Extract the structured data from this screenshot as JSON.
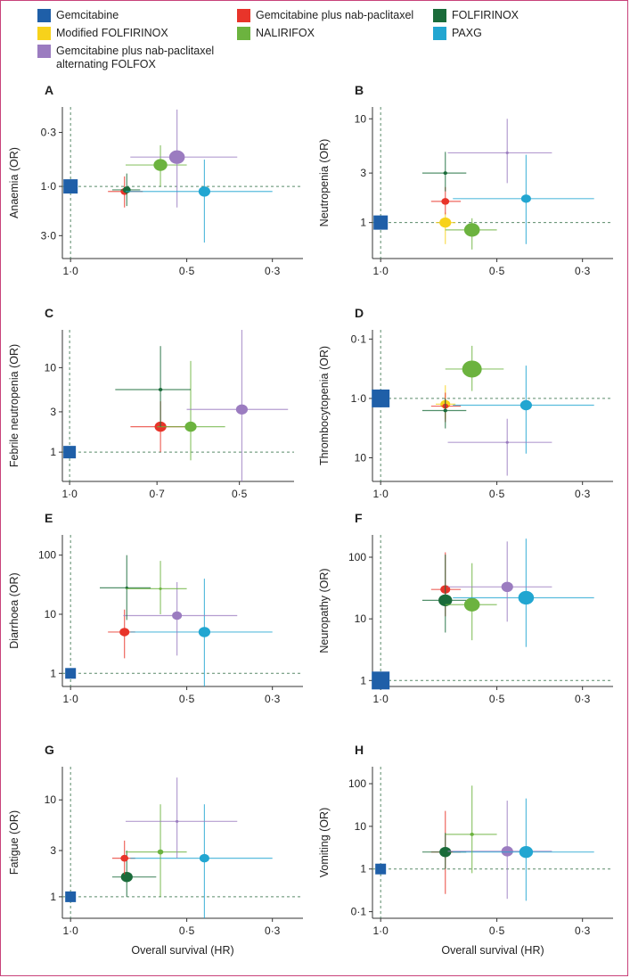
{
  "legend": [
    {
      "name": "Gemcitabine",
      "color": "#1f5fa8"
    },
    {
      "name": "Gemcitabine plus nab-paclitaxel",
      "color": "#e8342a"
    },
    {
      "name": "FOLFIRINOX",
      "color": "#1a6b3a"
    },
    {
      "name": "Modified FOLFIRINOX",
      "color": "#f7d21b"
    },
    {
      "name": "NALIRIFOX",
      "color": "#6cb33f"
    },
    {
      "name": "PAXG",
      "color": "#22a6d1"
    },
    {
      "name": "Gemcitabine plus nab-paclitaxel alternating FOLFOX",
      "name_lines": [
        "Gemcitabine plus nab-paclitaxel",
        "alternating FOLFOX"
      ],
      "color": "#9b7cc0"
    }
  ],
  "xlabel": "Overall survival (HR)",
  "chart_data": [
    {
      "panel": "A",
      "type": "scatter",
      "ylabel": "Anaemia (OR)",
      "ylog": true,
      "y_inverted": true,
      "xlim": [
        1.05,
        0.25
      ],
      "ylim": [
        0.17,
        5.0
      ],
      "xticks": [
        {
          "v": 1.0,
          "label": "1·0"
        },
        {
          "v": 0.5,
          "label": "0·5"
        },
        {
          "v": 0.3,
          "label": "0·3"
        }
      ],
      "yticks": [
        {
          "v": 0.3,
          "label": "0·3"
        },
        {
          "v": 1.0,
          "label": "1·0"
        },
        {
          "v": 3.0,
          "label": "3·0"
        }
      ],
      "ref": {
        "x": 1.0,
        "y": 1.0
      },
      "points": [
        {
          "series": "Gemcitabine",
          "x": 1.0,
          "y": 1.0,
          "size": 8,
          "shape": "square"
        },
        {
          "series": "Gemcitabine plus nab-paclitaxel",
          "x": 0.725,
          "y": 1.12,
          "xerr": [
            0.8,
            0.65
          ],
          "yerr": [
            0.8,
            1.6
          ],
          "size": 4
        },
        {
          "series": "FOLFIRINOX",
          "x": 0.715,
          "y": 1.08,
          "xerr": [
            0.78,
            0.66
          ],
          "yerr": [
            0.75,
            1.55
          ],
          "size": 4
        },
        {
          "series": "NALIRIFOX",
          "x": 0.585,
          "y": 0.62,
          "xerr": [
            0.72,
            0.5
          ],
          "yerr": [
            0.4,
            1.0
          ],
          "size": 7
        },
        {
          "series": "Gemcitabine plus nab-paclitaxel alternating FOLFOX",
          "x": 0.53,
          "y": 0.52,
          "xerr": [
            0.7,
            0.37
          ],
          "yerr": [
            0.18,
            1.6
          ],
          "size": 8
        },
        {
          "series": "PAXG",
          "x": 0.45,
          "y": 1.12,
          "xerr": [
            0.72,
            0.3
          ],
          "yerr": [
            0.55,
            3.5
          ],
          "size": 6
        }
      ]
    },
    {
      "panel": "B",
      "type": "scatter",
      "ylabel": "Neutropenia (OR)",
      "ylog": true,
      "y_inverted": false,
      "xlim": [
        1.05,
        0.25
      ],
      "ylim": [
        0.45,
        13.0
      ],
      "xticks": [
        {
          "v": 1.0,
          "label": "1·0"
        },
        {
          "v": 0.5,
          "label": "0·5"
        },
        {
          "v": 0.3,
          "label": "0·3"
        }
      ],
      "yticks": [
        {
          "v": 1,
          "label": "1"
        },
        {
          "v": 3,
          "label": "3"
        },
        {
          "v": 10,
          "label": "10"
        }
      ],
      "ref": {
        "x": 1.0,
        "y": 1.0
      },
      "points": [
        {
          "series": "Gemcitabine",
          "x": 1.0,
          "y": 1.0,
          "size": 8,
          "shape": "square"
        },
        {
          "series": "Modified FOLFIRINOX",
          "x": 0.68,
          "y": 1.0,
          "xerr": [
            0.72,
            0.64
          ],
          "yerr": [
            0.62,
            1.25
          ],
          "size": 6
        },
        {
          "series": "NALIRIFOX",
          "x": 0.58,
          "y": 0.85,
          "xerr": [
            0.68,
            0.5
          ],
          "yerr": [
            0.55,
            1.1
          ],
          "size": 8
        },
        {
          "series": "Gemcitabine plus nab-paclitaxel",
          "x": 0.68,
          "y": 1.6,
          "xerr": [
            0.74,
            0.62
          ],
          "yerr": [
            1.2,
            2.2
          ],
          "size": 4
        },
        {
          "series": "PAXG",
          "x": 0.42,
          "y": 1.7,
          "xerr": [
            0.65,
            0.28
          ],
          "yerr": [
            0.62,
            4.5
          ],
          "size": 5
        },
        {
          "series": "FOLFIRINOX",
          "x": 0.68,
          "y": 3.0,
          "xerr": [
            0.78,
            0.6
          ],
          "yerr": [
            2.0,
            4.8
          ],
          "size": 2
        },
        {
          "series": "Gemcitabine plus nab-paclitaxel alternating FOLFOX",
          "x": 0.47,
          "y": 4.7,
          "xerr": [
            0.67,
            0.36
          ],
          "yerr": [
            2.4,
            10.0
          ],
          "size": 1.5
        }
      ]
    },
    {
      "panel": "C",
      "type": "scatter",
      "ylabel": "Febrile neutropenia (OR)",
      "ylog": true,
      "y_inverted": false,
      "xlim": [
        1.03,
        0.4
      ],
      "ylim": [
        0.45,
        28.0
      ],
      "xticks": [
        {
          "v": 1.0,
          "label": "1·0"
        },
        {
          "v": 0.7,
          "label": "0·7"
        },
        {
          "v": 0.5,
          "label": "0·5"
        }
      ],
      "yticks": [
        {
          "v": 1,
          "label": "1"
        },
        {
          "v": 3,
          "label": "3"
        },
        {
          "v": 10,
          "label": "10"
        }
      ],
      "ref": {
        "x": 1.0,
        "y": 1.0
      },
      "points": [
        {
          "series": "Gemcitabine",
          "x": 1.0,
          "y": 1.0,
          "size": 7,
          "shape": "square"
        },
        {
          "series": "Gemcitabine plus nab-paclitaxel",
          "x": 0.69,
          "y": 2.0,
          "xerr": [
            0.78,
            0.62
          ],
          "yerr": [
            1.0,
            4.0
          ],
          "size": 6
        },
        {
          "series": "NALIRIFOX",
          "x": 0.61,
          "y": 2.0,
          "xerr": [
            0.7,
            0.53
          ],
          "yerr": [
            0.8,
            12.0
          ],
          "size": 6
        },
        {
          "series": "Gemcitabine plus nab-paclitaxel alternating FOLFOX",
          "x": 0.495,
          "y": 3.2,
          "xerr": [
            0.62,
            0.41
          ],
          "yerr": [
            0.45,
            30.0
          ],
          "size": 6
        },
        {
          "series": "FOLFIRINOX",
          "x": 0.69,
          "y": 5.5,
          "xerr": [
            0.83,
            0.61
          ],
          "yerr": [
            2.0,
            18.0
          ],
          "size": 2
        }
      ]
    },
    {
      "panel": "D",
      "type": "scatter",
      "ylabel": "Thrombocytopenia (OR)",
      "ylog": true,
      "y_inverted": true,
      "xlim": [
        1.05,
        0.25
      ],
      "ylim": [
        0.07,
        25.0
      ],
      "xticks": [
        {
          "v": 1.0,
          "label": "1·0"
        },
        {
          "v": 0.5,
          "label": "0·5"
        },
        {
          "v": 0.3,
          "label": "0·3"
        }
      ],
      "yticks": [
        {
          "v": 0.1,
          "label": "0·1"
        },
        {
          "v": 1.0,
          "label": "1·0"
        },
        {
          "v": 10,
          "label": "10"
        }
      ],
      "ref": {
        "x": 1.0,
        "y": 1.0
      },
      "points": [
        {
          "series": "Gemcitabine",
          "x": 1.0,
          "y": 1.0,
          "size": 10,
          "shape": "square"
        },
        {
          "series": "NALIRIFOX",
          "x": 0.58,
          "y": 0.32,
          "xerr": [
            0.68,
            0.48
          ],
          "yerr": [
            0.13,
            0.75
          ],
          "size": 10
        },
        {
          "series": "Modified FOLFIRINOX",
          "x": 0.68,
          "y": 1.25,
          "xerr": [
            0.72,
            0.64
          ],
          "yerr": [
            0.6,
            2.2
          ],
          "size": 5
        },
        {
          "series": "Gemcitabine plus nab-paclitaxel",
          "x": 0.68,
          "y": 1.35,
          "xerr": [
            0.74,
            0.62
          ],
          "yerr": [
            0.8,
            2.5
          ],
          "size": 3
        },
        {
          "series": "FOLFIRINOX",
          "x": 0.68,
          "y": 1.6,
          "xerr": [
            0.78,
            0.6
          ],
          "yerr": [
            1.0,
            3.2
          ],
          "size": 2
        },
        {
          "series": "PAXG",
          "x": 0.42,
          "y": 1.3,
          "xerr": [
            0.65,
            0.28
          ],
          "yerr": [
            0.28,
            8.5
          ],
          "size": 6
        },
        {
          "series": "Gemcitabine plus nab-paclitaxel alternating FOLFOX",
          "x": 0.47,
          "y": 5.5,
          "xerr": [
            0.67,
            0.36
          ],
          "yerr": [
            2.2,
            20.0
          ],
          "size": 1.5
        }
      ]
    },
    {
      "panel": "E",
      "type": "scatter",
      "ylabel": "Diarrhoea (OR)",
      "ylog": true,
      "y_inverted": false,
      "xlim": [
        1.05,
        0.25
      ],
      "ylim": [
        0.6,
        220.0
      ],
      "xticks": [
        {
          "v": 1.0,
          "label": "1·0"
        },
        {
          "v": 0.5,
          "label": "0·5"
        },
        {
          "v": 0.3,
          "label": "0·3"
        }
      ],
      "yticks": [
        {
          "v": 1,
          "label": "1"
        },
        {
          "v": 10,
          "label": "10"
        },
        {
          "v": 100,
          "label": "100"
        }
      ],
      "ref": {
        "x": 1.0,
        "y": 1.0
      },
      "points": [
        {
          "series": "Gemcitabine",
          "x": 1.0,
          "y": 1.0,
          "size": 6,
          "shape": "square"
        },
        {
          "series": "Gemcitabine plus nab-paclitaxel",
          "x": 0.725,
          "y": 5.0,
          "xerr": [
            0.8,
            0.68
          ],
          "yerr": [
            1.8,
            12.0
          ],
          "size": 5
        },
        {
          "series": "PAXG",
          "x": 0.45,
          "y": 5.0,
          "xerr": [
            0.7,
            0.3
          ],
          "yerr": [
            0.6,
            40.0
          ],
          "size": 6
        },
        {
          "series": "Gemcitabine plus nab-paclitaxel alternating FOLFOX",
          "x": 0.53,
          "y": 9.5,
          "xerr": [
            0.73,
            0.37
          ],
          "yerr": [
            2.0,
            35.0
          ],
          "size": 5
        },
        {
          "series": "FOLFIRINOX",
          "x": 0.715,
          "y": 28.0,
          "xerr": [
            0.84,
            0.62
          ],
          "yerr": [
            8.0,
            100.0
          ],
          "size": 1.5
        },
        {
          "series": "NALIRIFOX",
          "x": 0.585,
          "y": 27.0,
          "xerr": [
            0.72,
            0.5
          ],
          "yerr": [
            10.0,
            80.0
          ],
          "size": 1.5
        }
      ]
    },
    {
      "panel": "F",
      "type": "scatter",
      "ylabel": "Neuropathy (OR)",
      "ylog": true,
      "y_inverted": false,
      "xlim": [
        1.05,
        0.25
      ],
      "ylim": [
        0.8,
        230.0
      ],
      "xticks": [
        {
          "v": 1.0,
          "label": "1·0"
        },
        {
          "v": 0.5,
          "label": "0·5"
        },
        {
          "v": 0.3,
          "label": "0·3"
        }
      ],
      "yticks": [
        {
          "v": 1,
          "label": "1"
        },
        {
          "v": 10,
          "label": "10"
        },
        {
          "v": 100,
          "label": "100"
        }
      ],
      "ref": {
        "x": 1.0,
        "y": 1.0
      },
      "points": [
        {
          "series": "Gemcitabine",
          "x": 1.0,
          "y": 1.0,
          "size": 10,
          "shape": "square"
        },
        {
          "series": "Gemcitabine plus nab-paclitaxel",
          "x": 0.68,
          "y": 30.0,
          "xerr": [
            0.74,
            0.62
          ],
          "yerr": [
            11.0,
            120.0
          ],
          "size": 5
        },
        {
          "series": "FOLFIRINOX",
          "x": 0.68,
          "y": 20.0,
          "xerr": [
            0.78,
            0.6
          ],
          "yerr": [
            6.0,
            110.0
          ],
          "size": 7
        },
        {
          "series": "NALIRIFOX",
          "x": 0.58,
          "y": 17.0,
          "xerr": [
            0.68,
            0.5
          ],
          "yerr": [
            4.5,
            80.0
          ],
          "size": 8
        },
        {
          "series": "PAXG",
          "x": 0.42,
          "y": 22.0,
          "xerr": [
            0.65,
            0.28
          ],
          "yerr": [
            3.5,
            200.0
          ],
          "size": 8
        },
        {
          "series": "Gemcitabine plus nab-paclitaxel alternating FOLFOX",
          "x": 0.47,
          "y": 33.0,
          "xerr": [
            0.67,
            0.36
          ],
          "yerr": [
            9.0,
            180.0
          ],
          "size": 6
        }
      ]
    },
    {
      "panel": "G",
      "type": "scatter",
      "ylabel": "Fatigue (OR)",
      "ylog": true,
      "y_inverted": false,
      "xlim": [
        1.05,
        0.25
      ],
      "ylim": [
        0.6,
        22.0
      ],
      "xticks": [
        {
          "v": 1.0,
          "label": "1·0"
        },
        {
          "v": 0.5,
          "label": "0·5"
        },
        {
          "v": 0.3,
          "label": "0·3"
        }
      ],
      "yticks": [
        {
          "v": 1,
          "label": "1"
        },
        {
          "v": 3,
          "label": "3"
        },
        {
          "v": 10,
          "label": "10"
        }
      ],
      "ref": {
        "x": 1.0,
        "y": 1.0
      },
      "points": [
        {
          "series": "Gemcitabine",
          "x": 1.0,
          "y": 1.0,
          "size": 6,
          "shape": "square"
        },
        {
          "series": "FOLFIRINOX",
          "x": 0.715,
          "y": 1.6,
          "xerr": [
            0.78,
            0.6
          ],
          "yerr": [
            1.0,
            3.0
          ],
          "size": 6
        },
        {
          "series": "Gemcitabine plus nab-paclitaxel",
          "x": 0.725,
          "y": 2.5,
          "xerr": [
            0.78,
            0.68
          ],
          "yerr": [
            1.7,
            3.8
          ],
          "size": 4
        },
        {
          "series": "PAXG",
          "x": 0.45,
          "y": 2.5,
          "xerr": [
            0.7,
            0.3
          ],
          "yerr": [
            0.6,
            9.0
          ],
          "size": 5
        },
        {
          "series": "NALIRIFOX",
          "x": 0.585,
          "y": 2.9,
          "xerr": [
            0.72,
            0.5
          ],
          "yerr": [
            1.0,
            9.0
          ],
          "size": 3
        },
        {
          "series": "Gemcitabine plus nab-paclitaxel alternating FOLFOX",
          "x": 0.53,
          "y": 6.0,
          "xerr": [
            0.72,
            0.37
          ],
          "yerr": [
            2.5,
            17.0
          ],
          "size": 1.5
        }
      ]
    },
    {
      "panel": "H",
      "type": "scatter",
      "ylabel": "Vomiting (OR)",
      "ylog": true,
      "y_inverted": false,
      "xlim": [
        1.05,
        0.25
      ],
      "ylim": [
        0.07,
        250.0
      ],
      "xticks": [
        {
          "v": 1.0,
          "label": "1·0"
        },
        {
          "v": 0.5,
          "label": "0·5"
        },
        {
          "v": 0.3,
          "label": "0·3"
        }
      ],
      "yticks": [
        {
          "v": 0.1,
          "label": "0·1"
        },
        {
          "v": 1,
          "label": "1"
        },
        {
          "v": 10,
          "label": "10"
        },
        {
          "v": 100,
          "label": "100"
        }
      ],
      "ref": {
        "x": 1.0,
        "y": 1.0
      },
      "points": [
        {
          "series": "Gemcitabine",
          "x": 1.0,
          "y": 1.0,
          "size": 6,
          "shape": "square"
        },
        {
          "series": "Gemcitabine plus nab-paclitaxel",
          "x": 0.68,
          "y": 2.5,
          "xerr": [
            0.74,
            0.62
          ],
          "yerr": [
            0.26,
            23.0
          ],
          "size": 4
        },
        {
          "series": "FOLFIRINOX",
          "x": 0.68,
          "y": 2.5,
          "xerr": [
            0.78,
            0.6
          ],
          "yerr": [
            1.0,
            7.0
          ],
          "size": 6
        },
        {
          "series": "Gemcitabine plus nab-paclitaxel alternating FOLFOX",
          "x": 0.47,
          "y": 2.6,
          "xerr": [
            0.67,
            0.36
          ],
          "yerr": [
            0.2,
            40.0
          ],
          "size": 6
        },
        {
          "series": "PAXG",
          "x": 0.42,
          "y": 2.5,
          "xerr": [
            0.65,
            0.28
          ],
          "yerr": [
            0.18,
            45.0
          ],
          "size": 7
        },
        {
          "series": "NALIRIFOX",
          "x": 0.58,
          "y": 6.5,
          "xerr": [
            0.68,
            0.5
          ],
          "yerr": [
            0.8,
            90.0
          ],
          "size": 2
        }
      ]
    }
  ]
}
